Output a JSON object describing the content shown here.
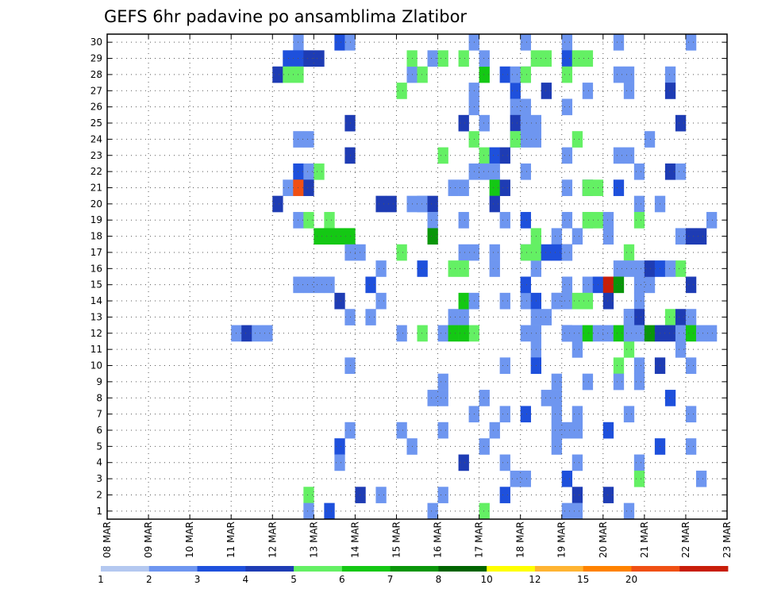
{
  "chart_data": {
    "type": "heatmap",
    "title": "GEFS 6hr padavine po ansamblima Zlatibor",
    "xlabel": "",
    "ylabel": "",
    "x_tick_labels": [
      "08 MAR",
      "09 MAR",
      "10 MAR",
      "11 MAR",
      "12 MAR",
      "13 MAR",
      "14 MAR",
      "15 MAR",
      "16 MAR",
      "17 MAR",
      "18 MAR",
      "19 MAR",
      "20 MAR",
      "21 MAR",
      "22 MAR",
      "23 MAR"
    ],
    "y_tick_labels": [
      "1",
      "2",
      "3",
      "4",
      "5",
      "6",
      "7",
      "8",
      "9",
      "10",
      "11",
      "12",
      "13",
      "14",
      "15",
      "16",
      "17",
      "18",
      "19",
      "20",
      "21",
      "22",
      "23",
      "24",
      "25",
      "26",
      "27",
      "28",
      "29",
      "30"
    ],
    "x_unit": "6-hour step from 08 MAR 00",
    "xlim": [
      0,
      60
    ],
    "ylim": [
      0,
      30
    ],
    "grid": true,
    "colorbar": {
      "labels": [
        "1",
        "2",
        "3",
        "4",
        "5",
        "6",
        "7",
        "8",
        "10",
        "12",
        "15",
        "20"
      ],
      "colors": [
        "#b4c8f0",
        "#6e96f0",
        "#1e50dc",
        "#1e3cb4",
        "#64f064",
        "#14c814",
        "#0a960a",
        "#006400",
        "#ffff00",
        "#ffb432",
        "#ff8200",
        "#f05014",
        "#c81e0a",
        "#780000"
      ]
    },
    "cells": [
      [
        35,
        29.5,
        1
      ],
      [
        40,
        29.5,
        1
      ],
      [
        44,
        29.5,
        1
      ],
      [
        49,
        29.5,
        1
      ],
      [
        56,
        29.5,
        1
      ],
      [
        31,
        28.5,
        1
      ],
      [
        32,
        28.5,
        4
      ],
      [
        34,
        28.5,
        4
      ],
      [
        41,
        28.5,
        4
      ],
      [
        42,
        28.5,
        4
      ],
      [
        44,
        28.5,
        2
      ],
      [
        45,
        28.5,
        4
      ],
      [
        46,
        28.5,
        4
      ],
      [
        29,
        27.5,
        1
      ],
      [
        30,
        27.5,
        4
      ],
      [
        36,
        27.5,
        5
      ],
      [
        40,
        27.5,
        1
      ],
      [
        44,
        27.5,
        4
      ],
      [
        49,
        27.5,
        1
      ],
      [
        50,
        27.5,
        1
      ],
      [
        54,
        27.5,
        1
      ],
      [
        28,
        26.5,
        4
      ],
      [
        35,
        26.5,
        1
      ],
      [
        39,
        26.5,
        2
      ],
      [
        42,
        26.5,
        3
      ],
      [
        46,
        26.5,
        1
      ],
      [
        50,
        26.5,
        1
      ],
      [
        54,
        26.5,
        3
      ],
      [
        35,
        25.5,
        1
      ],
      [
        39,
        25.5,
        1
      ],
      [
        40,
        25.5,
        1
      ],
      [
        44,
        25.5,
        1
      ],
      [
        36,
        24.5,
        1
      ],
      [
        39,
        24.5,
        3
      ],
      [
        40,
        24.5,
        1
      ],
      [
        41,
        24.5,
        1
      ],
      [
        55,
        24.5,
        3
      ],
      [
        39,
        23.5,
        1
      ],
      [
        40,
        23.5,
        1
      ],
      [
        41,
        23.5,
        1
      ],
      [
        52,
        23.5,
        1
      ],
      [
        36,
        22.5,
        4
      ],
      [
        44,
        22.5,
        1
      ],
      [
        49,
        22.5,
        1
      ],
      [
        50,
        22.5,
        1
      ],
      [
        40,
        21.5,
        1
      ],
      [
        51,
        21.5,
        1
      ],
      [
        54,
        21.5,
        3
      ],
      [
        55,
        21.5,
        1
      ],
      [
        44,
        20.5,
        1
      ],
      [
        46,
        20.5,
        3
      ],
      [
        49,
        20.5,
        2
      ],
      [
        29,
        19.5,
        1
      ],
      [
        30,
        19.5,
        1
      ],
      [
        51,
        19.5,
        1
      ],
      [
        53,
        19.5,
        1
      ],
      [
        40,
        18.5,
        2
      ],
      [
        44,
        18.5,
        1
      ],
      [
        46,
        18.5,
        1
      ],
      [
        51,
        18.5,
        4
      ],
      [
        41,
        17.5,
        4
      ],
      [
        43,
        17.5,
        1
      ],
      [
        45,
        17.5,
        1
      ],
      [
        55,
        17.5,
        1
      ],
      [
        28,
        16.5,
        4
      ],
      [
        35,
        16.5,
        1
      ],
      [
        40,
        16.5,
        1
      ],
      [
        44,
        16.5,
        3
      ],
      [
        50,
        16.5,
        4
      ],
      [
        30,
        15.5,
        2
      ],
      [
        33,
        15.5,
        4
      ],
      [
        37,
        15.5,
        1
      ],
      [
        41,
        15.5,
        1
      ],
      [
        55,
        15.5,
        4
      ],
      [
        40,
        14.5,
        1
      ],
      [
        44,
        14.5,
        1
      ],
      [
        51,
        14.5,
        1
      ],
      [
        52,
        14.5,
        1
      ],
      [
        38,
        13.5,
        1
      ],
      [
        40,
        13.5,
        1
      ],
      [
        41,
        13.5,
        2
      ],
      [
        43,
        13.5,
        1
      ],
      [
        44,
        13.5,
        1
      ],
      [
        51,
        13.5,
        1
      ],
      [
        23,
        12.5,
        1
      ],
      [
        25,
        12.5,
        1
      ],
      [
        33,
        12.5,
        1
      ],
      [
        34,
        12.5,
        1
      ],
      [
        50,
        12.5,
        3
      ],
      [
        51,
        12.5,
        3
      ],
      [
        28,
        11.5,
        1
      ],
      [
        30,
        11.5,
        4
      ],
      [
        35,
        11.5,
        4
      ],
      [
        40,
        11.5,
        1
      ],
      [
        41,
        11.5,
        1
      ],
      [
        44,
        11.5,
        2
      ],
      [
        55,
        11.5,
        1
      ],
      [
        41,
        10.5,
        1
      ],
      [
        45,
        10.5,
        1
      ],
      [
        50,
        10.5,
        4
      ],
      [
        55,
        10.5,
        1
      ],
      [
        23,
        9.5,
        1
      ],
      [
        38,
        9.5,
        1
      ],
      [
        41,
        9.5,
        2
      ],
      [
        49,
        9.5,
        4
      ],
      [
        51,
        9.5,
        1
      ],
      [
        53,
        9.5,
        3
      ],
      [
        56,
        9.5,
        1
      ],
      [
        32,
        8.5,
        1
      ],
      [
        43,
        8.5,
        1
      ],
      [
        46,
        8.5,
        1
      ],
      [
        49,
        8.5,
        1
      ],
      [
        51,
        8.5,
        1
      ],
      [
        31,
        7.5,
        1
      ],
      [
        32,
        7.5,
        1
      ],
      [
        36,
        7.5,
        1
      ],
      [
        42,
        7.5,
        1
      ],
      [
        43,
        7.5,
        1
      ],
      [
        54,
        7.5,
        2
      ],
      [
        35,
        6.5,
        1
      ],
      [
        38,
        6.5,
        1
      ],
      [
        40,
        6.5,
        2
      ],
      [
        43,
        6.5,
        1
      ],
      [
        45,
        6.5,
        1
      ],
      [
        50,
        6.5,
        1
      ],
      [
        56,
        6.5,
        1
      ],
      [
        23,
        5.5,
        1
      ],
      [
        28,
        5.5,
        1
      ],
      [
        32,
        5.5,
        1
      ],
      [
        37,
        5.5,
        1
      ],
      [
        43,
        5.5,
        1
      ],
      [
        44,
        5.5,
        1
      ],
      [
        45,
        5.5,
        1
      ],
      [
        48,
        5.5,
        2
      ],
      [
        22,
        4.5,
        2
      ],
      [
        29,
        4.5,
        1
      ],
      [
        36,
        4.5,
        1
      ],
      [
        43,
        4.5,
        1
      ],
      [
        53,
        4.5,
        2
      ],
      [
        56,
        4.5,
        1
      ],
      [
        22,
        3.5,
        1
      ],
      [
        34,
        3.5,
        3
      ],
      [
        38,
        3.5,
        1
      ],
      [
        45,
        3.5,
        1
      ],
      [
        51,
        3.5,
        1
      ],
      [
        39,
        2.5,
        1
      ],
      [
        40,
        2.5,
        1
      ],
      [
        44,
        2.5,
        2
      ],
      [
        51,
        2.5,
        4
      ],
      [
        57,
        2.5,
        1
      ],
      [
        19,
        1.5,
        4
      ],
      [
        24,
        1.5,
        3
      ],
      [
        26,
        1.5,
        1
      ],
      [
        32,
        1.5,
        1
      ],
      [
        38,
        1.5,
        2
      ],
      [
        45,
        1.5,
        3
      ],
      [
        48,
        1.5,
        3
      ],
      [
        19,
        0.5,
        1
      ],
      [
        21,
        0.5,
        2
      ],
      [
        31,
        0.5,
        1
      ],
      [
        36,
        0.5,
        4
      ],
      [
        44,
        0.5,
        1
      ],
      [
        45,
        0.5,
        1
      ],
      [
        50,
        0.5,
        1
      ],
      [
        18,
        29.5,
        1
      ],
      [
        22,
        29.5,
        2
      ],
      [
        23,
        29.5,
        1
      ],
      [
        17,
        28.5,
        2
      ],
      [
        18,
        28.5,
        2
      ],
      [
        19,
        28.5,
        3
      ],
      [
        20,
        28.5,
        3
      ],
      [
        29,
        28.5,
        4
      ],
      [
        36,
        28.5,
        1
      ],
      [
        16,
        27.5,
        3
      ],
      [
        17,
        27.5,
        4
      ],
      [
        18,
        27.5,
        4
      ],
      [
        38,
        27.5,
        2
      ],
      [
        39,
        27.5,
        1
      ],
      [
        40,
        27.5,
        4
      ],
      [
        23,
        24.5,
        3
      ],
      [
        34,
        24.5,
        3
      ],
      [
        18,
        23.5,
        1
      ],
      [
        19,
        23.5,
        1
      ],
      [
        35,
        23.5,
        4
      ],
      [
        39,
        23.5,
        4
      ],
      [
        45,
        23.5,
        4
      ],
      [
        23,
        22.5,
        3
      ],
      [
        32,
        22.5,
        4
      ],
      [
        37,
        22.5,
        2
      ],
      [
        38,
        22.5,
        3
      ],
      [
        18,
        21.5,
        2
      ],
      [
        19,
        21.5,
        1
      ],
      [
        20,
        21.5,
        4
      ],
      [
        35,
        21.5,
        1
      ],
      [
        36,
        21.5,
        1
      ],
      [
        37,
        21.5,
        1
      ],
      [
        17,
        20.5,
        1
      ],
      [
        18,
        20.5,
        11
      ],
      [
        19,
        20.5,
        3
      ],
      [
        33,
        20.5,
        1
      ],
      [
        34,
        20.5,
        1
      ],
      [
        37,
        20.5,
        5
      ],
      [
        38,
        20.5,
        3
      ],
      [
        46,
        20.5,
        4
      ],
      [
        47,
        20.5,
        4
      ],
      [
        16,
        19.5,
        3
      ],
      [
        26,
        19.5,
        3
      ],
      [
        27,
        19.5,
        3
      ],
      [
        30,
        19.5,
        1
      ],
      [
        31,
        19.5,
        3
      ],
      [
        37,
        19.5,
        3
      ],
      [
        18,
        18.5,
        1
      ],
      [
        19,
        18.5,
        4
      ],
      [
        21,
        18.5,
        4
      ],
      [
        31,
        18.5,
        1
      ],
      [
        34,
        18.5,
        1
      ],
      [
        38,
        18.5,
        1
      ],
      [
        46,
        18.5,
        4
      ],
      [
        47,
        18.5,
        4
      ],
      [
        48,
        18.5,
        1
      ],
      [
        58,
        18.5,
        1
      ],
      [
        20,
        17.5,
        5
      ],
      [
        21,
        17.5,
        5
      ],
      [
        22,
        17.5,
        5
      ],
      [
        23,
        17.5,
        5
      ],
      [
        31,
        17.5,
        6
      ],
      [
        48,
        17.5,
        1
      ],
      [
        56,
        17.5,
        3
      ],
      [
        57,
        17.5,
        3
      ],
      [
        23,
        16.5,
        1
      ],
      [
        24,
        16.5,
        1
      ],
      [
        34,
        16.5,
        1
      ],
      [
        37,
        16.5,
        1
      ],
      [
        40,
        16.5,
        4
      ],
      [
        41,
        16.5,
        4
      ],
      [
        42,
        16.5,
        2
      ],
      [
        43,
        16.5,
        2
      ],
      [
        44,
        16.5,
        1
      ],
      [
        26,
        15.5,
        1
      ],
      [
        34,
        15.5,
        4
      ],
      [
        49,
        15.5,
        1
      ],
      [
        50,
        15.5,
        1
      ],
      [
        51,
        15.5,
        1
      ],
      [
        52,
        15.5,
        3
      ],
      [
        53,
        15.5,
        2
      ],
      [
        54,
        15.5,
        1
      ],
      [
        18,
        14.5,
        1
      ],
      [
        19,
        14.5,
        1
      ],
      [
        20,
        14.5,
        1
      ],
      [
        21,
        14.5,
        1
      ],
      [
        25,
        14.5,
        2
      ],
      [
        40,
        14.5,
        2
      ],
      [
        46,
        14.5,
        1
      ],
      [
        47,
        14.5,
        2
      ],
      [
        48,
        14.5,
        12
      ],
      [
        49,
        14.5,
        6
      ],
      [
        56,
        14.5,
        3
      ],
      [
        22,
        13.5,
        3
      ],
      [
        26,
        13.5,
        1
      ],
      [
        34,
        13.5,
        5
      ],
      [
        35,
        13.5,
        1
      ],
      [
        43,
        13.5,
        1
      ],
      [
        45,
        13.5,
        4
      ],
      [
        46,
        13.5,
        4
      ],
      [
        48,
        13.5,
        3
      ],
      [
        41,
        12.5,
        1
      ],
      [
        42,
        12.5,
        1
      ],
      [
        50,
        12.5,
        1
      ],
      [
        54,
        12.5,
        4
      ],
      [
        55,
        12.5,
        3
      ],
      [
        56,
        12.5,
        1
      ],
      [
        12,
        11.5,
        1
      ],
      [
        13,
        11.5,
        3
      ],
      [
        14,
        11.5,
        1
      ],
      [
        15,
        11.5,
        1
      ],
      [
        32,
        11.5,
        1
      ],
      [
        33,
        11.5,
        5
      ],
      [
        34,
        11.5,
        5
      ],
      [
        44,
        11.5,
        1
      ],
      [
        45,
        11.5,
        1
      ],
      [
        46,
        11.5,
        5
      ],
      [
        47,
        11.5,
        1
      ],
      [
        48,
        11.5,
        1
      ],
      [
        49,
        11.5,
        5
      ],
      [
        50,
        11.5,
        1
      ],
      [
        51,
        11.5,
        1
      ],
      [
        52,
        11.5,
        6
      ],
      [
        53,
        11.5,
        3
      ],
      [
        54,
        11.5,
        3
      ],
      [
        55,
        11.5,
        1
      ],
      [
        56,
        11.5,
        5
      ],
      [
        57,
        11.5,
        1
      ],
      [
        58,
        11.5,
        1
      ]
    ]
  }
}
